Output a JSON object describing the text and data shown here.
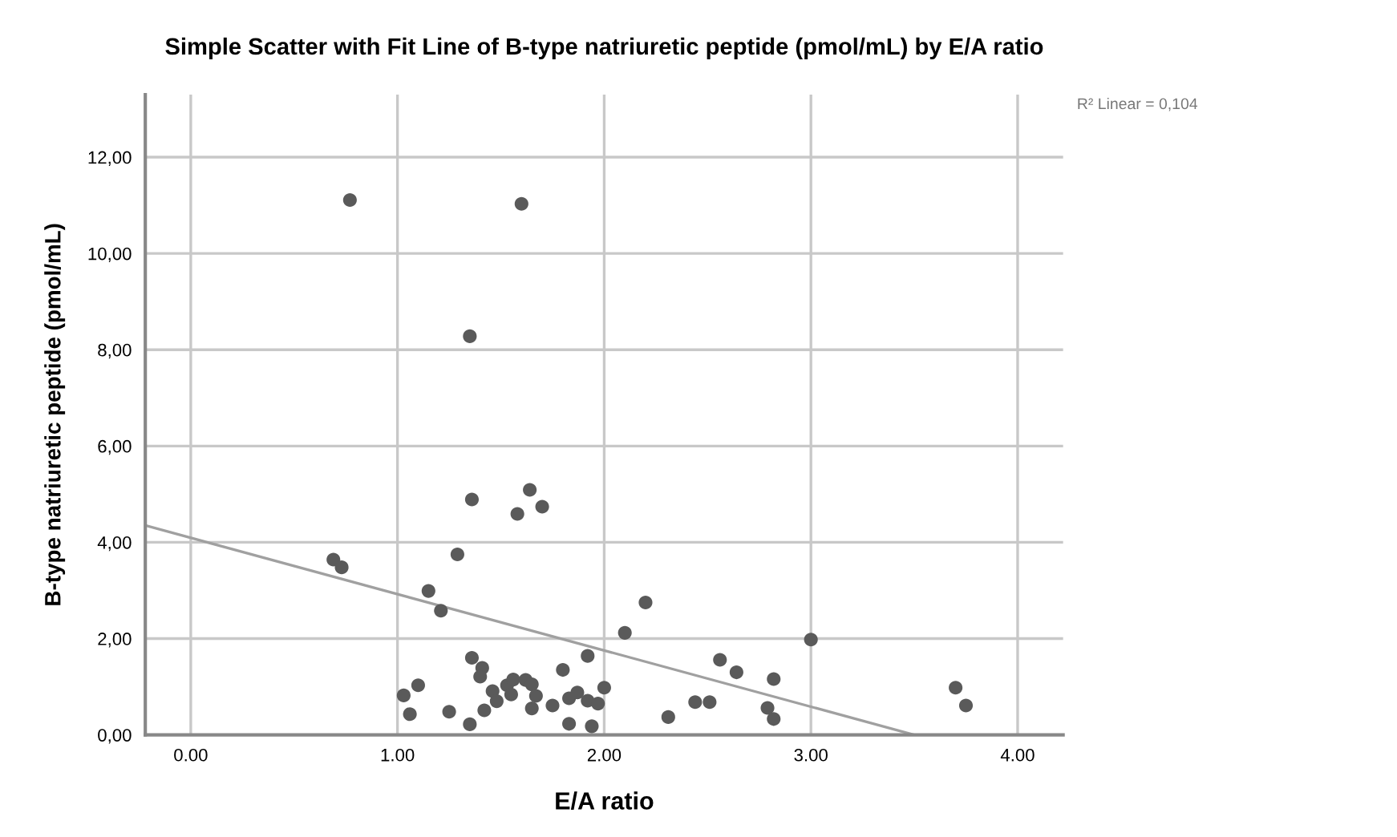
{
  "chart_data": {
    "type": "scatter",
    "title": "Simple Scatter with Fit Line of B-type natriuretic peptide (pmol/mL) by E/A ratio",
    "xlabel": "E/A ratio",
    "ylabel": "B-type natriuretic peptide (pmol/mL)",
    "annotations": [
      "R² Linear = 0,104"
    ],
    "series": [
      {
        "color": "#5a5a5a",
        "marker": "circle",
        "x": [
          0.77,
          1.6,
          1.35,
          1.36,
          1.58,
          1.64,
          1.7,
          0.69,
          0.73,
          1.29,
          1.15,
          1.21,
          2.1,
          2.2,
          1.92,
          2.56,
          2.64,
          1.36,
          1.41,
          1.4,
          1.03,
          1.1,
          1.06,
          1.25,
          1.35,
          1.42,
          1.46,
          1.48,
          1.53,
          1.55,
          1.56,
          1.62,
          1.65,
          1.67,
          1.65,
          1.75,
          1.8,
          1.83,
          1.87,
          1.83,
          1.92,
          1.97,
          1.94,
          2.0,
          2.31,
          2.44,
          2.51,
          3.0,
          2.82,
          2.79,
          2.82,
          3.7,
          3.75
        ],
        "values": [
          11.11,
          11.03,
          8.28,
          4.89,
          4.59,
          5.09,
          4.74,
          3.64,
          3.48,
          3.75,
          2.99,
          2.58,
          2.12,
          2.75,
          1.64,
          1.56,
          1.3,
          1.6,
          1.39,
          1.21,
          0.82,
          1.03,
          0.43,
          0.48,
          0.22,
          0.51,
          0.91,
          0.7,
          1.03,
          0.84,
          1.15,
          1.14,
          1.05,
          0.81,
          0.55,
          0.61,
          1.35,
          0.76,
          0.88,
          0.23,
          0.71,
          0.65,
          0.18,
          0.98,
          0.37,
          0.68,
          0.68,
          1.98,
          1.16,
          0.56,
          0.33,
          0.98,
          0.61
        ]
      },
      {
        "type": "line",
        "color": "#a0a0a0",
        "marker": "none",
        "x": [
          -0.22,
          3.5
        ],
        "values": [
          4.35,
          0
        ]
      }
    ],
    "xlim": [
      -0.22,
      4.22
    ],
    "ylim": [
      0,
      13.3
    ],
    "xticks": [
      {
        "value": 0,
        "label": "0.00"
      },
      {
        "value": 1,
        "label": "1.00"
      },
      {
        "value": 2,
        "label": "2.00"
      },
      {
        "value": 3,
        "label": "3.00"
      },
      {
        "value": 4,
        "label": "4.00"
      }
    ],
    "yticks": [
      {
        "value": 0,
        "label": "0,00"
      },
      {
        "value": 2,
        "label": "2,00"
      },
      {
        "value": 4,
        "label": "4,00"
      },
      {
        "value": 6,
        "label": "6,00"
      },
      {
        "value": 8,
        "label": "8,00"
      },
      {
        "value": 10,
        "label": "10,00"
      },
      {
        "value": 12,
        "label": "12,00"
      }
    ],
    "grid": true
  }
}
